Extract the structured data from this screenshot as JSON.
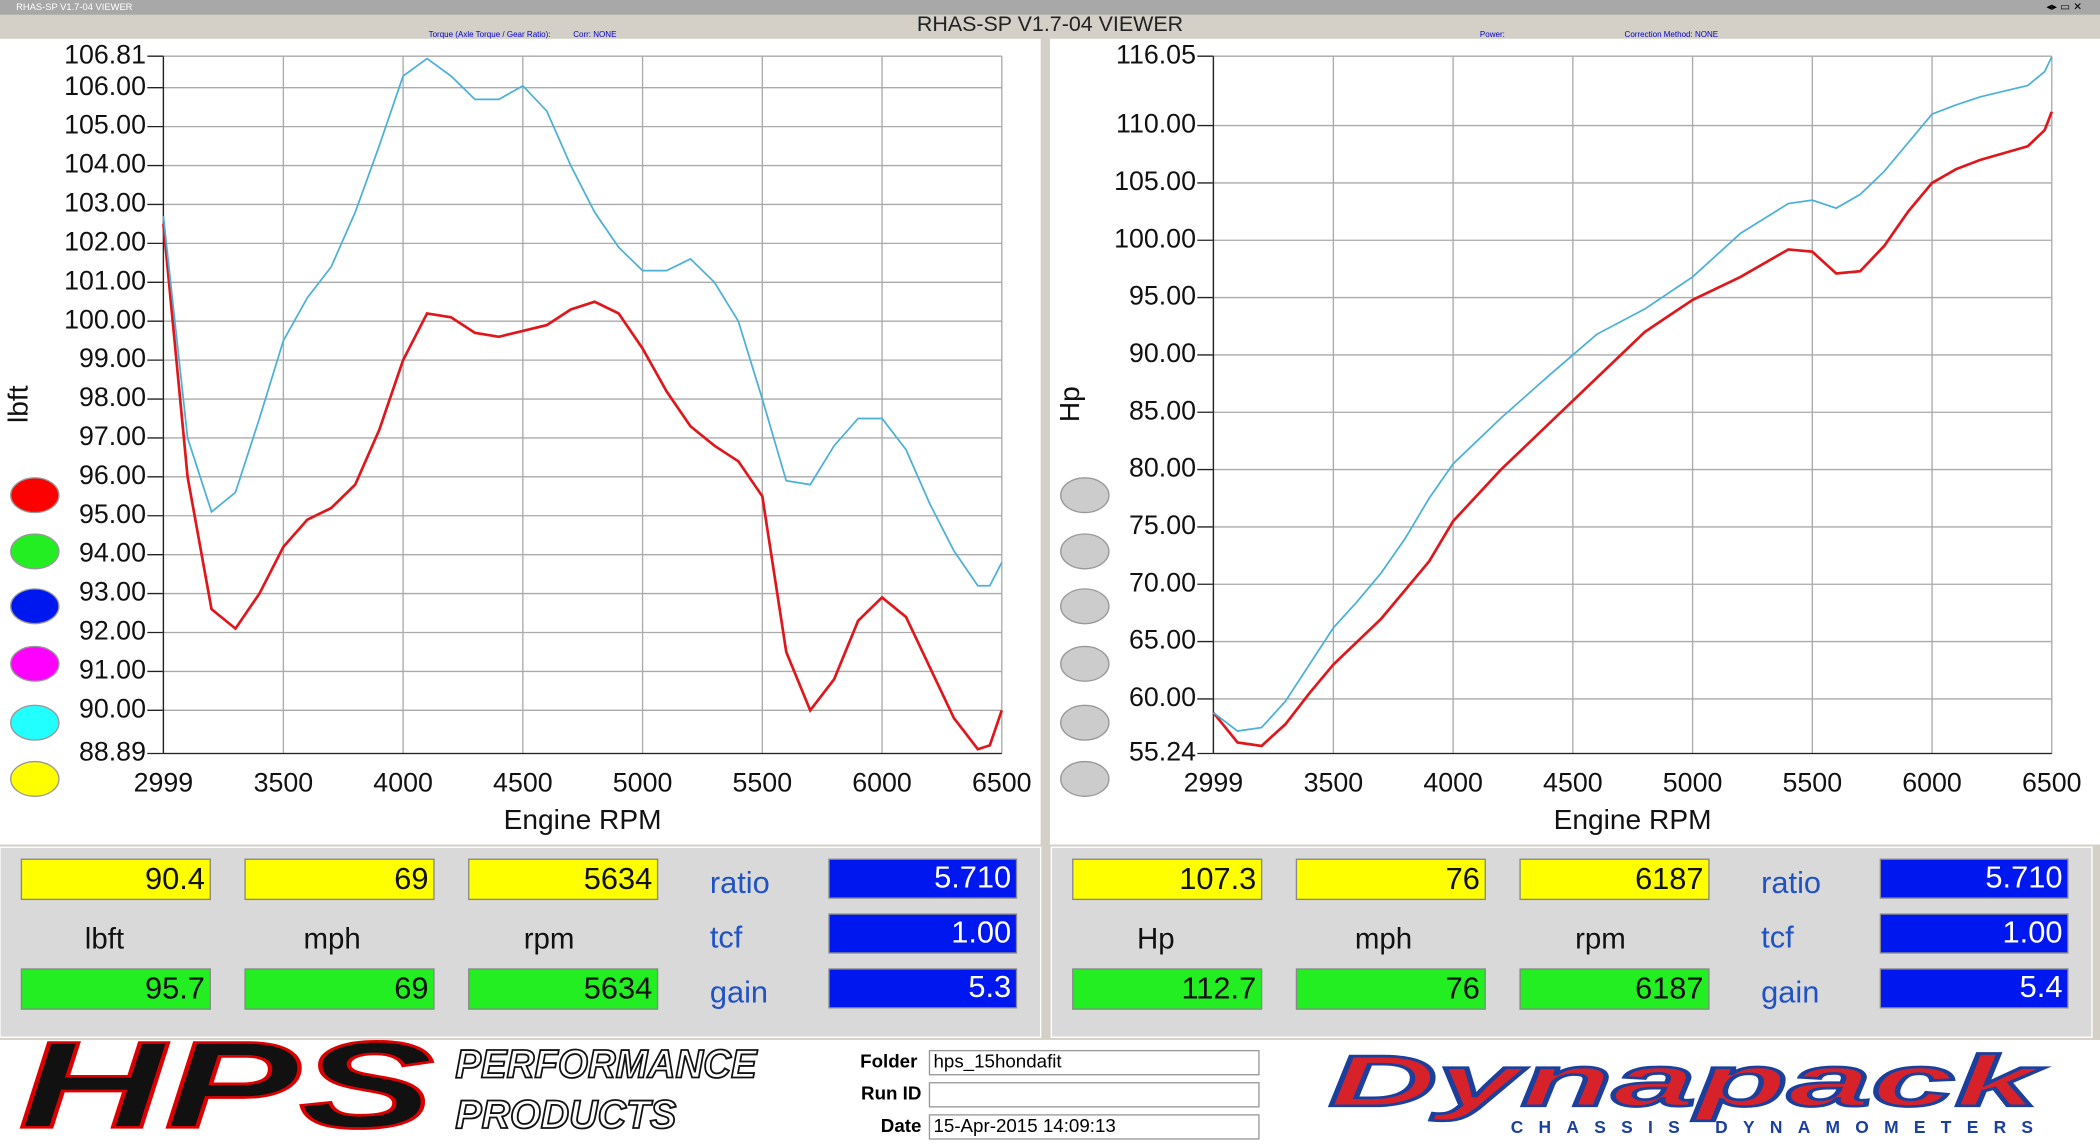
{
  "window": {
    "title": "RHAS-SP V1.7-04  VIEWER",
    "heading": "RHAS-SP V1.7-04  VIEWER"
  },
  "chart_data": [
    {
      "type": "line",
      "header_left": "Torque (Axle Torque / Gear Ratio):",
      "header_right": "Corr: NONE",
      "xlabel": "Engine RPM",
      "ylabel": "lbft",
      "x": [
        2999,
        3100,
        3200,
        3300,
        3400,
        3500,
        3600,
        3700,
        3800,
        3900,
        4000,
        4100,
        4200,
        4300,
        4400,
        4500,
        4600,
        4700,
        4800,
        4900,
        5000,
        5100,
        5200,
        5300,
        5400,
        5500,
        5600,
        5700,
        5800,
        5900,
        6000,
        6100,
        6200,
        6300,
        6400,
        6450,
        6500
      ],
      "series": [
        {
          "color": "#e0161b",
          "values": [
            102.5,
            96,
            92.6,
            92.1,
            93,
            94.2,
            94.9,
            95.2,
            95.8,
            97.2,
            99,
            100.2,
            100.1,
            99.7,
            99.6,
            99.75,
            99.9,
            100.3,
            100.5,
            100.2,
            99.3,
            98.2,
            97.3,
            96.8,
            96.4,
            95.5,
            91.5,
            90.0,
            90.8,
            92.3,
            92.9,
            92.4,
            91.1,
            89.8,
            89.0,
            89.1,
            90.0
          ]
        },
        {
          "color": "#4ab0d8",
          "values": [
            102.7,
            97,
            95.1,
            95.6,
            97.5,
            99.5,
            100.6,
            101.4,
            102.8,
            104.5,
            106.3,
            106.75,
            106.3,
            105.7,
            105.7,
            106.05,
            105.4,
            104,
            102.8,
            101.9,
            101.3,
            101.3,
            101.6,
            101.0,
            100.0,
            98.0,
            95.9,
            95.8,
            96.8,
            97.5,
            97.5,
            96.7,
            95.3,
            94.1,
            93.2,
            93.2,
            93.8
          ]
        }
      ],
      "xlim": [
        2999,
        6500
      ],
      "xticks": [
        2999,
        3500,
        4000,
        4500,
        5000,
        5500,
        6000,
        6500
      ],
      "ylim": [
        88.89,
        106.81
      ],
      "yticks": [
        {
          "value": 88.89,
          "label": "88.89"
        },
        {
          "value": 90,
          "label": "90.00"
        },
        {
          "value": 91,
          "label": "91.00"
        },
        {
          "value": 92,
          "label": "92.00"
        },
        {
          "value": 93,
          "label": "93.00"
        },
        {
          "value": 94,
          "label": "94.00"
        },
        {
          "value": 95,
          "label": "95.00"
        },
        {
          "value": 96,
          "label": "96.00"
        },
        {
          "value": 97,
          "label": "97.00"
        },
        {
          "value": 98,
          "label": "98.00"
        },
        {
          "value": 99,
          "label": "99.00"
        },
        {
          "value": 100,
          "label": "100.00"
        },
        {
          "value": 101,
          "label": "101.00"
        },
        {
          "value": 102,
          "label": "102.00"
        },
        {
          "value": 103,
          "label": "103.00"
        },
        {
          "value": 104,
          "label": "104.00"
        },
        {
          "value": 105,
          "label": "105.00"
        },
        {
          "value": 106,
          "label": "106.00"
        },
        {
          "value": 106.81,
          "label": "106.81"
        }
      ],
      "grid": true
    },
    {
      "type": "line",
      "header_left": "Power:",
      "header_right": "Correction Method: NONE",
      "xlabel": "Engine RPM",
      "ylabel": "Hp",
      "x": [
        2999,
        3100,
        3200,
        3300,
        3400,
        3500,
        3600,
        3700,
        3800,
        3900,
        4000,
        4200,
        4400,
        4600,
        4800,
        5000,
        5200,
        5400,
        5500,
        5600,
        5700,
        5800,
        5900,
        6000,
        6100,
        6200,
        6300,
        6400,
        6470,
        6500
      ],
      "series": [
        {
          "color": "#e0161b",
          "values": [
            58.8,
            56.2,
            55.9,
            57.8,
            60.5,
            63,
            65,
            67,
            69.5,
            72,
            75.5,
            80,
            84,
            88,
            92,
            94.8,
            96.8,
            99.2,
            99.0,
            97.1,
            97.3,
            99.5,
            102.5,
            105,
            106.2,
            107,
            107.6,
            108.2,
            109.6,
            111.2
          ]
        },
        {
          "color": "#4ab0d8",
          "values": [
            58.8,
            57.2,
            57.5,
            59.8,
            63,
            66.2,
            68.5,
            71,
            74,
            77.5,
            80.5,
            84.5,
            88.2,
            91.8,
            94,
            96.8,
            100.6,
            103.2,
            103.5,
            102.8,
            104,
            106,
            108.5,
            111,
            111.8,
            112.5,
            113,
            113.5,
            114.7,
            116.0
          ]
        }
      ],
      "xlim": [
        2999,
        6500
      ],
      "xticks": [
        2999,
        3500,
        4000,
        4500,
        5000,
        5500,
        6000,
        6500
      ],
      "ylim": [
        55.24,
        116.05
      ],
      "yticks": [
        {
          "value": 55.24,
          "label": "55.24"
        },
        {
          "value": 60,
          "label": "60.00"
        },
        {
          "value": 65,
          "label": "65.00"
        },
        {
          "value": 70,
          "label": "70.00"
        },
        {
          "value": 75,
          "label": "75.00"
        },
        {
          "value": 80,
          "label": "80.00"
        },
        {
          "value": 85,
          "label": "85.00"
        },
        {
          "value": 90,
          "label": "90.00"
        },
        {
          "value": 95,
          "label": "95.00"
        },
        {
          "value": 100,
          "label": "100.00"
        },
        {
          "value": 105,
          "label": "105.00"
        },
        {
          "value": 110,
          "label": "110.00"
        },
        {
          "value": 116.05,
          "label": "116.05"
        }
      ],
      "grid": true
    }
  ],
  "readouts": [
    {
      "top": [
        "90.4",
        "69",
        "5634"
      ],
      "labels": [
        "lbft",
        "mph",
        "rpm"
      ],
      "bottom": [
        "95.7",
        "69",
        "5634"
      ],
      "params": [
        {
          "label": "ratio",
          "value": "5.710"
        },
        {
          "label": "tcf",
          "value": "1.00"
        },
        {
          "label": "gain",
          "value": "5.3"
        }
      ]
    },
    {
      "top": [
        "107.3",
        "76",
        "6187"
      ],
      "labels": [
        "Hp",
        "mph",
        "rpm"
      ],
      "bottom": [
        "112.7",
        "76",
        "6187"
      ],
      "params": [
        {
          "label": "ratio",
          "value": "5.710"
        },
        {
          "label": "tcf",
          "value": "1.00"
        },
        {
          "label": "gain",
          "value": "5.4"
        }
      ]
    }
  ],
  "footer": {
    "logo": "HPS",
    "logo_line1": "PERFORMANCE",
    "logo_line2": "PRODUCTS",
    "folder_label": "Folder",
    "folder": "hps_15hondafit",
    "runid_label": "Run ID",
    "date_label": "Date",
    "date": "15-Apr-2015  14:09:13",
    "brand": "Dynapack",
    "brand_sub": "CHASSIS DYNAMOMETERS"
  }
}
